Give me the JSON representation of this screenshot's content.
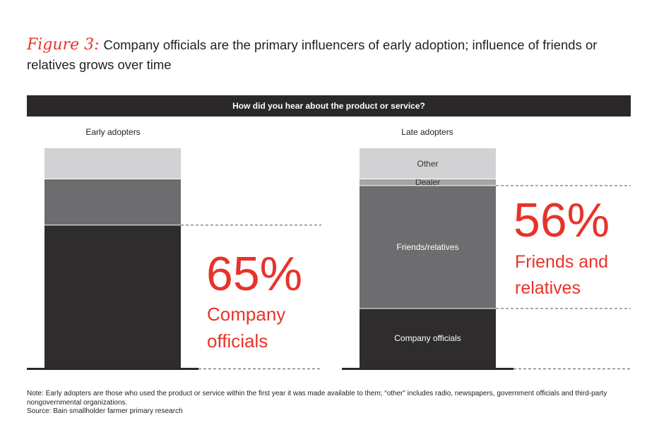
{
  "figure": {
    "label": "Figure 3:",
    "title": "Company officials are the primary influencers of early adoption; influence of friends or relatives grows over time"
  },
  "question": "How did you hear about the product or service?",
  "colors": {
    "accent": "#e8332a",
    "company_officials": "#2e2c2c",
    "friends_relatives": "#6d6d6f",
    "dealer": "#a5a5a7",
    "other": "#d2d2d4"
  },
  "chart_data": {
    "type": "bar",
    "stacked": true,
    "categories": [
      "Early adopters",
      "Late adopters"
    ],
    "ylim": [
      0,
      100
    ],
    "series": [
      {
        "name": "Company officials",
        "values": [
          65,
          27
        ]
      },
      {
        "name": "Friends/relatives",
        "values": [
          21,
          56
        ]
      },
      {
        "name": "Dealer",
        "values": [
          0,
          3
        ]
      },
      {
        "name": "Other",
        "values": [
          14,
          14
        ]
      }
    ],
    "segment_labels": {
      "Early adopters": [
        "",
        "",
        "",
        ""
      ],
      "Late adopters": [
        "Company officials",
        "Friends/relatives",
        "Dealer",
        "Other"
      ]
    },
    "callouts": [
      {
        "bar": "Early adopters",
        "value": "65%",
        "text_lines": [
          "Company",
          "officials"
        ]
      },
      {
        "bar": "Late adopters",
        "value": "56%",
        "text_lines": [
          "Friends and",
          "relatives"
        ]
      }
    ]
  },
  "notes": {
    "note": "Note: Early adopters are those who used the product or service within the first year it was made available to them; “other” includes radio, newspapers, government officials and third-party nongovernmental organizations.",
    "source": "Source: Bain smallholder farmer primary research"
  }
}
